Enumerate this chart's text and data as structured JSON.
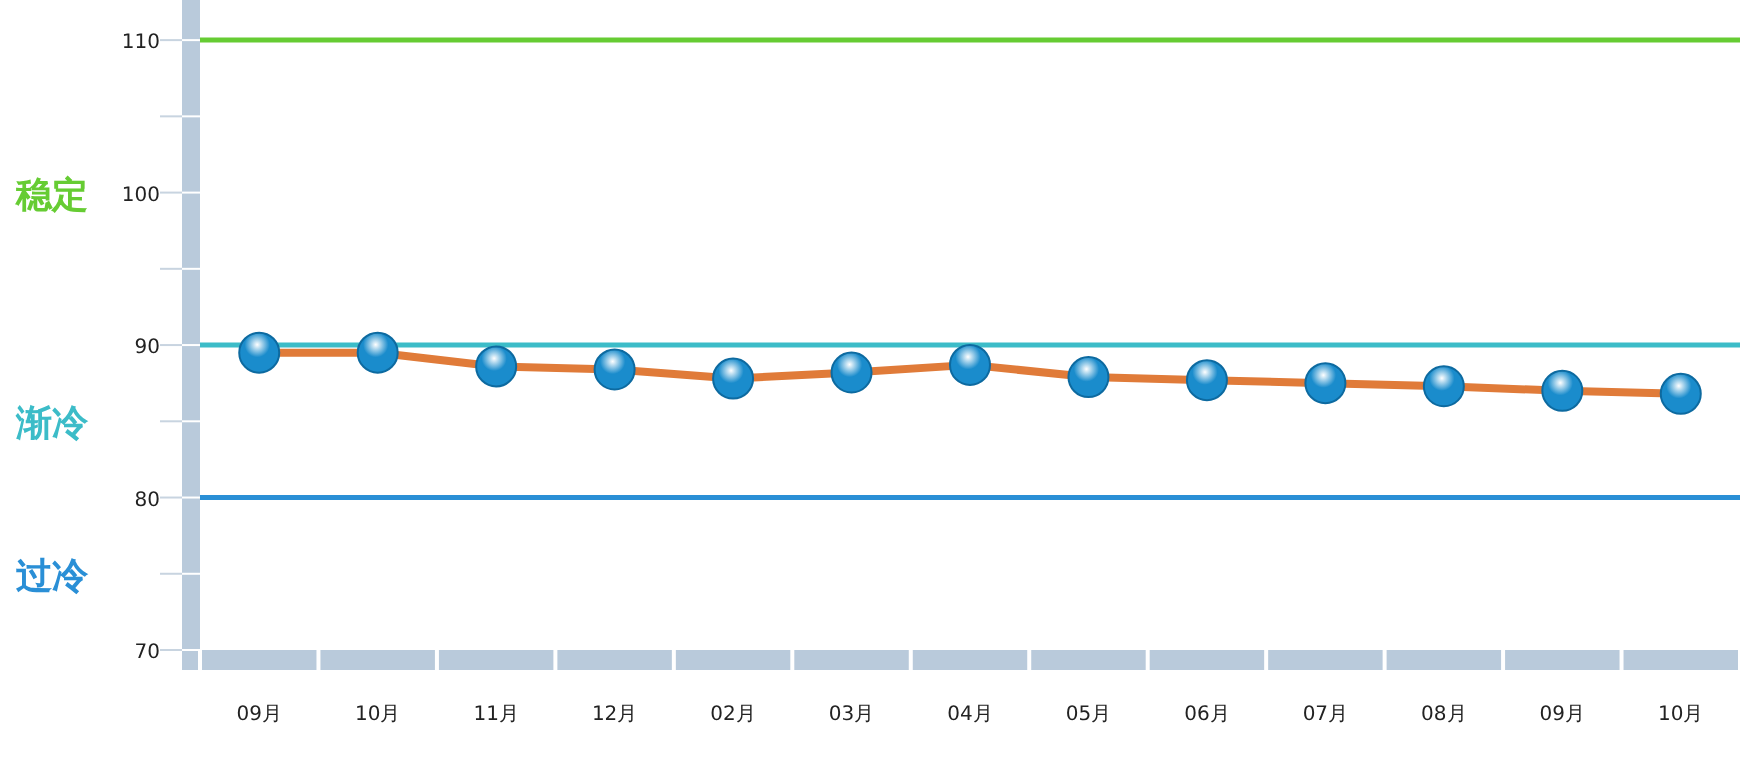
{
  "chart_data": {
    "type": "line",
    "categories": [
      "09月",
      "10月",
      "11月",
      "12月",
      "02月",
      "03月",
      "04月",
      "05月",
      "06月",
      "07月",
      "08月",
      "09月",
      "10月"
    ],
    "series": [
      {
        "color": "#e07b39",
        "colors": [
          "#1a8ccc",
          "#1a8ccc",
          "#1a8ccc",
          "#1a8ccc",
          "#1a8ccc",
          "#1a8ccc",
          "#1a8ccc",
          "#1a8ccc",
          "#1a8ccc",
          "#1a8ccc",
          "#1a8ccc",
          "#1a8ccc",
          "#1a8ccc"
        ],
        "values": [
          89.5,
          89.5,
          88.6,
          88.4,
          87.8,
          88.2,
          88.7,
          87.9,
          87.7,
          87.5,
          87.3,
          87.0,
          86.8
        ]
      }
    ],
    "marker": "circle",
    "ylim": [
      70,
      112.5
    ],
    "yticks": [
      70,
      {
        "value": 75,
        "label": null
      },
      80,
      {
        "value": 85,
        "label": null
      },
      90,
      {
        "value": 95,
        "label": null
      },
      100,
      {
        "value": 105,
        "label": null
      },
      110
    ],
    "ref_lines": [
      {
        "axis": "y",
        "value": 110,
        "color": "#66cc33"
      },
      {
        "axis": "y",
        "value": 90,
        "color": "#3cbcc8"
      },
      {
        "axis": "y",
        "value": 80,
        "color": "#2a8fd6"
      }
    ],
    "annotations": [
      "稳定",
      "渐冷",
      "过冷"
    ]
  }
}
